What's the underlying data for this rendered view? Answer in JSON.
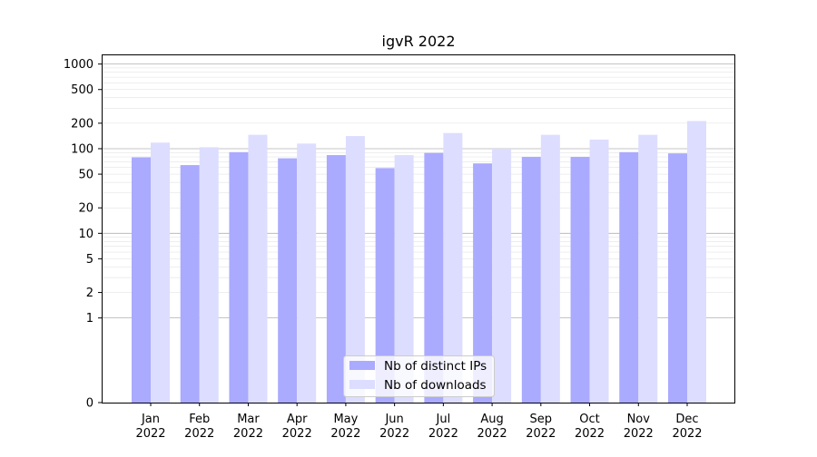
{
  "chart_data": {
    "type": "bar",
    "title": "igvR 2022",
    "xlabel": "",
    "ylabel": "",
    "y_scale": "symlog",
    "ylim": [
      0,
      1300
    ],
    "y_ticks": [
      0,
      1,
      2,
      5,
      10,
      20,
      50,
      100,
      200,
      500,
      1000
    ],
    "y_tick_labels": [
      "0",
      "1",
      "2",
      "5",
      "10",
      "20",
      "50",
      "100",
      "200",
      "500",
      "1000"
    ],
    "categories": [
      {
        "month": "Jan",
        "year": "2022"
      },
      {
        "month": "Feb",
        "year": "2022"
      },
      {
        "month": "Mar",
        "year": "2022"
      },
      {
        "month": "Apr",
        "year": "2022"
      },
      {
        "month": "May",
        "year": "2022"
      },
      {
        "month": "Jun",
        "year": "2022"
      },
      {
        "month": "Jul",
        "year": "2022"
      },
      {
        "month": "Aug",
        "year": "2022"
      },
      {
        "month": "Sep",
        "year": "2022"
      },
      {
        "month": "Oct",
        "year": "2022"
      },
      {
        "month": "Nov",
        "year": "2022"
      },
      {
        "month": "Dec",
        "year": "2022"
      }
    ],
    "series": [
      {
        "name": "Nb of distinct IPs",
        "color": "#aaaaff",
        "values": [
          79,
          64,
          91,
          77,
          84,
          59,
          89,
          67,
          80,
          80,
          91,
          88
        ]
      },
      {
        "name": "Nb of downloads",
        "color": "#ddddff",
        "values": [
          118,
          104,
          146,
          115,
          141,
          84,
          153,
          100,
          146,
          128,
          146,
          212
        ]
      }
    ],
    "grid": true,
    "legend_position": "bottom-center"
  }
}
